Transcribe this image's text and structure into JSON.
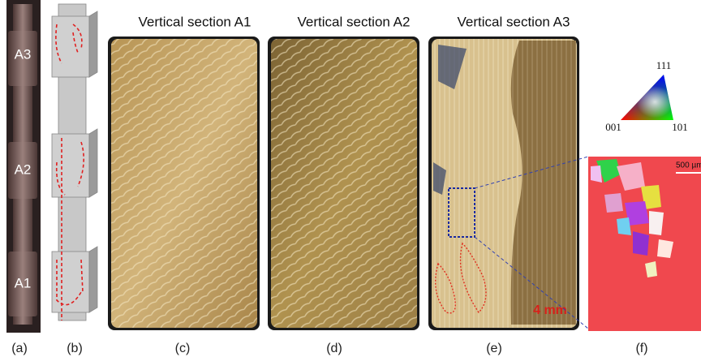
{
  "panels": [
    {
      "label": "(a)",
      "markers": [
        "A3",
        "A2",
        "A1"
      ]
    },
    {
      "label": "(b)"
    },
    {
      "label": "(c)",
      "title": "Vertical section A1"
    },
    {
      "label": "(d)",
      "title": "Vertical section A2"
    },
    {
      "label": "(e)",
      "title": "Vertical section A3",
      "scale_bar": "4 mm"
    },
    {
      "label": "(f)",
      "scale_bar": "500 µm"
    }
  ],
  "color_key": {
    "corners": [
      "111",
      "001",
      "101"
    ]
  }
}
